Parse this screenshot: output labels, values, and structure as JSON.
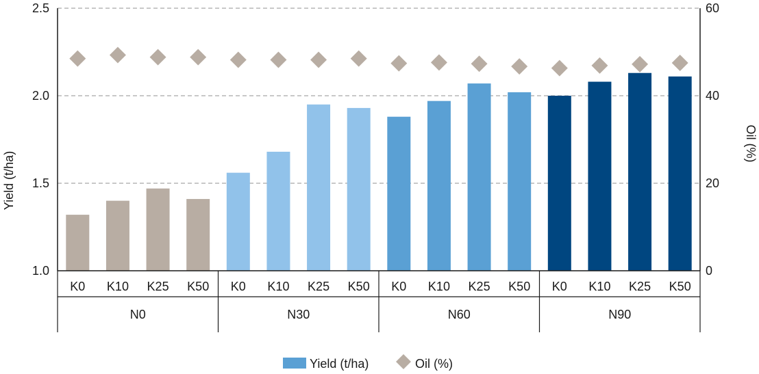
{
  "chart_data": {
    "type": "bar",
    "title": "",
    "categories": [
      "K0",
      "K10",
      "K25",
      "K50",
      "K0",
      "K10",
      "K25",
      "K50",
      "K0",
      "K10",
      "K25",
      "K50",
      "K0",
      "K10",
      "K25",
      "K50"
    ],
    "groups": [
      {
        "label": "N0",
        "count": 4,
        "color": "#b8ada3"
      },
      {
        "label": "N30",
        "count": 4,
        "color": "#91c2ea"
      },
      {
        "label": "N60",
        "count": 4,
        "color": "#5aa0d4"
      },
      {
        "label": "N90",
        "count": 4,
        "color": "#004680"
      }
    ],
    "series": [
      {
        "name": "Yield (t/ha)",
        "axis": "left",
        "type": "bar",
        "values": [
          1.32,
          1.4,
          1.47,
          1.41,
          1.56,
          1.68,
          1.95,
          1.93,
          1.88,
          1.97,
          2.07,
          2.02,
          2.0,
          2.08,
          2.13,
          2.11
        ]
      },
      {
        "name": "Oil (%)",
        "axis": "right",
        "type": "scatter",
        "marker": "diamond",
        "values": [
          48.5,
          49.3,
          48.8,
          48.8,
          48.2,
          48.2,
          48.2,
          48.5,
          47.4,
          47.6,
          47.3,
          46.7,
          46.3,
          46.9,
          47.2,
          47.5
        ]
      }
    ],
    "ylabel": "Yield (t/ha)",
    "ylim": [
      1.0,
      2.5
    ],
    "yticks": [
      "1.0",
      "1.5",
      "2.0",
      "2.5"
    ],
    "y2label": "Oil (%)",
    "y2lim": [
      0,
      60
    ],
    "y2ticks": [
      "0",
      "20",
      "40",
      "60"
    ],
    "grid": true,
    "legend": {
      "position": "bottom-center",
      "items": [
        {
          "label": "Yield (t/ha)",
          "symbol": "bar",
          "color": "#5aa0d4"
        },
        {
          "label": "Oil (%)",
          "symbol": "diamond",
          "color": "#b8ada3"
        }
      ]
    },
    "colors": {
      "gridline": "#a6a6a6",
      "axis": "#1a1a1a",
      "oil_marker": "#b8ada3"
    }
  }
}
